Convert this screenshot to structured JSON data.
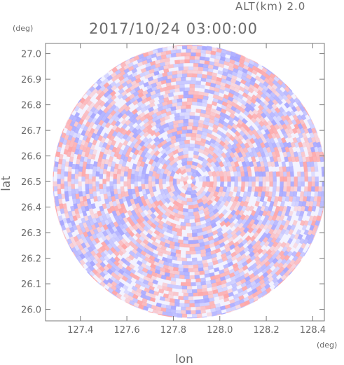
{
  "header": {
    "altitude_label": "ALT(km)  2.0",
    "datetime": "2017/10/24  03:00:00"
  },
  "chart_data": {
    "type": "heatmap",
    "title": "2017/10/24  03:00:00",
    "subtitle": "ALT(km)  2.0",
    "xlabel": "lon",
    "ylabel": "lat",
    "x_unit": "(deg)",
    "y_unit": "(deg)",
    "xlim": [
      127.25,
      128.45
    ],
    "ylim": [
      25.955,
      27.04
    ],
    "x_ticks": [
      {
        "value": 127.4,
        "label": "127.4"
      },
      {
        "value": 127.6,
        "label": "127.6"
      },
      {
        "value": 127.8,
        "label": "127.8"
      },
      {
        "value": 128.0,
        "label": "128.0"
      },
      {
        "value": 128.2,
        "label": "128.2"
      },
      {
        "value": 128.4,
        "label": "128.4"
      }
    ],
    "y_ticks": [
      {
        "value": 26.0,
        "label": "26.0"
      },
      {
        "value": 26.1,
        "label": "26.1"
      },
      {
        "value": 26.2,
        "label": "26.2"
      },
      {
        "value": 26.3,
        "label": "26.3"
      },
      {
        "value": 26.4,
        "label": "26.4"
      },
      {
        "value": 26.5,
        "label": "26.5"
      },
      {
        "value": 26.6,
        "label": "26.6"
      },
      {
        "value": 26.7,
        "label": "26.7"
      },
      {
        "value": 26.8,
        "label": "26.8"
      },
      {
        "value": 26.9,
        "label": "26.9"
      },
      {
        "value": 27.0,
        "label": "27.0"
      }
    ],
    "radar_center": {
      "lon": 127.87,
      "lat": 26.5
    },
    "radar_radius_deg_lat": 0.535,
    "colors": {
      "positive": "#ff9a9a",
      "negative": "#9a9aff",
      "axis": "#777777"
    },
    "grid": false,
    "legend": "none"
  }
}
